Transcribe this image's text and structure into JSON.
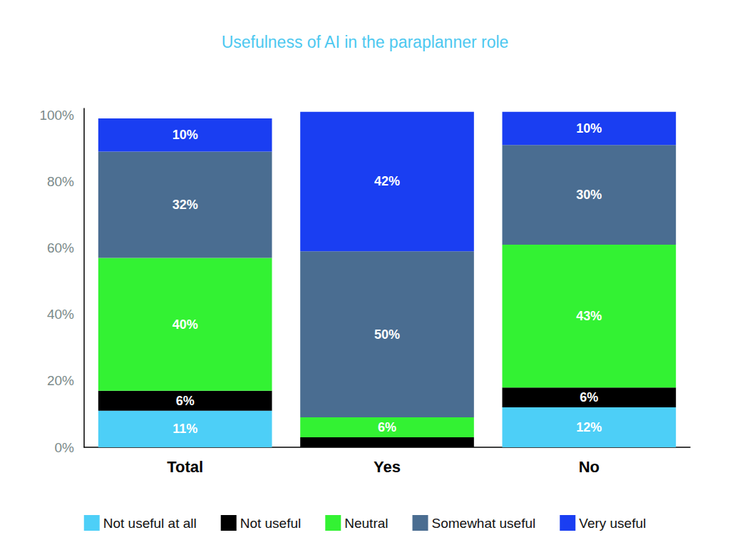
{
  "chart_data": {
    "type": "bar",
    "title": "Usefulness of AI in the paraplanner role",
    "categories": [
      "Total",
      "Yes",
      "No"
    ],
    "series": [
      {
        "name": "Not useful at all",
        "color": "#4dcff7",
        "values": [
          11,
          0,
          12
        ],
        "value_labels": [
          "11%",
          null,
          "12%"
        ]
      },
      {
        "name": "Not useful",
        "color": "#000000",
        "values": [
          6,
          3,
          6
        ],
        "value_labels": [
          "6%",
          null,
          "6%"
        ]
      },
      {
        "name": "Neutral",
        "color": "#33f233",
        "values": [
          40,
          6,
          43
        ],
        "value_labels": [
          "40%",
          "6%",
          "43%"
        ]
      },
      {
        "name": "Somewhat useful",
        "color": "#4a6d91",
        "values": [
          32,
          50,
          30
        ],
        "value_labels": [
          "32%",
          "50%",
          "30%"
        ]
      },
      {
        "name": "Very useful",
        "color": "#1a3ef2",
        "values": [
          10,
          42,
          10
        ],
        "value_labels": [
          "10%",
          "42%",
          "10%"
        ]
      }
    ],
    "ylim": [
      0,
      102
    ],
    "yticks": [
      {
        "value": 0,
        "label": "0%"
      },
      {
        "value": 20,
        "label": "20%"
      },
      {
        "value": 40,
        "label": "40%"
      },
      {
        "value": 60,
        "label": "60%"
      },
      {
        "value": 80,
        "label": "80%"
      },
      {
        "value": 100,
        "label": "100%"
      }
    ],
    "grid": false,
    "stacked": true,
    "data_labels": true,
    "legend": "bottom"
  }
}
